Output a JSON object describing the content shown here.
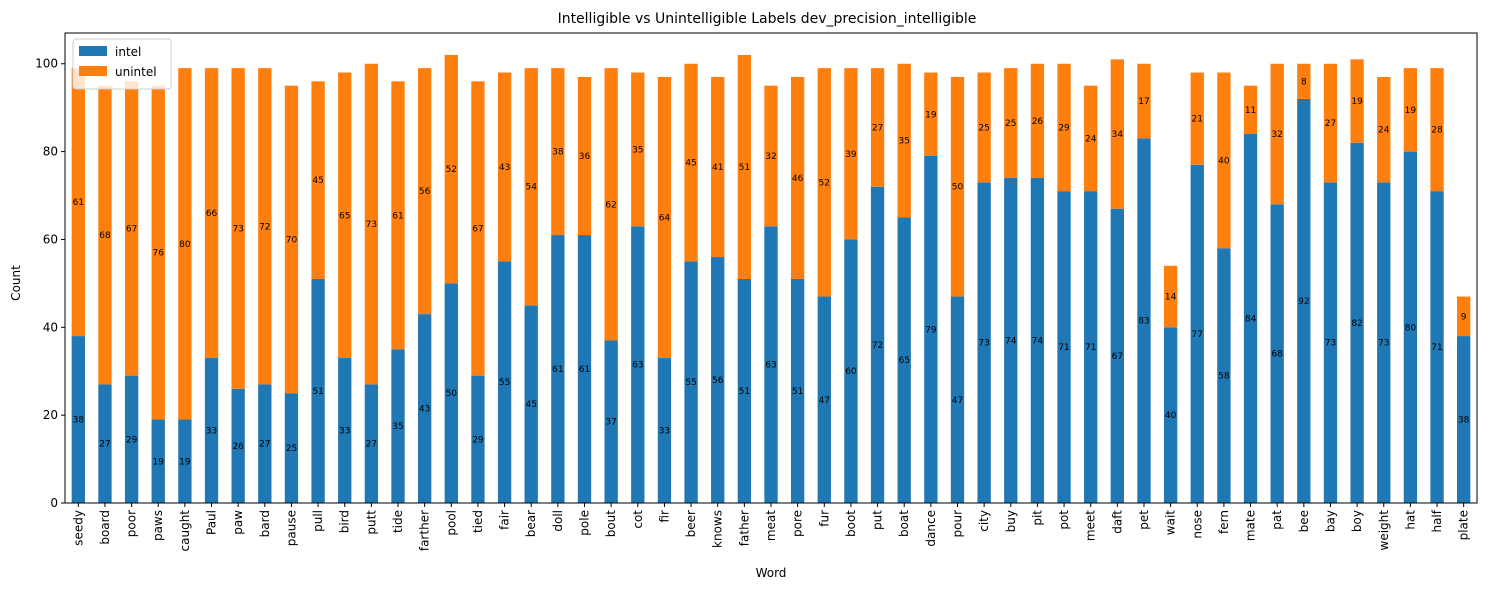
{
  "chart_data": {
    "type": "bar",
    "stacked": true,
    "title": "Intelligible vs Unintelligible Labels dev_precision_intelligible",
    "xlabel": "Word",
    "ylabel": "Count",
    "ylim": [
      0,
      107
    ],
    "yticks": [
      0,
      20,
      40,
      60,
      80,
      100
    ],
    "legend_position": "top-left",
    "grid": false,
    "categories": [
      "seedy",
      "board",
      "poor",
      "paws",
      "caught",
      "Paul",
      "paw",
      "bard",
      "pause",
      "pull",
      "bird",
      "putt",
      "tide",
      "farther",
      "pool",
      "tied",
      "fair",
      "bear",
      "doll",
      "pole",
      "bout",
      "cot",
      "fir",
      "beer",
      "knows",
      "father",
      "meat",
      "pore",
      "fur",
      "boot",
      "put",
      "boat",
      "dance",
      "pour",
      "city",
      "buy",
      "pit",
      "pot",
      "meet",
      "daft",
      "pet",
      "wait",
      "nose",
      "fern",
      "mate",
      "pat",
      "bee",
      "bay",
      "boy",
      "weight",
      "hat",
      "half",
      "plate"
    ],
    "series": [
      {
        "name": "intel",
        "color": "#1f77b4",
        "values": [
          38,
          27,
          29,
          19,
          19,
          33,
          26,
          27,
          25,
          51,
          33,
          27,
          35,
          43,
          50,
          29,
          55,
          45,
          61,
          61,
          37,
          63,
          33,
          55,
          56,
          51,
          63,
          51,
          47,
          60,
          72,
          65,
          79,
          47,
          73,
          74,
          74,
          71,
          71,
          67,
          83,
          40,
          77,
          58,
          84,
          68,
          92,
          73,
          82,
          73,
          80,
          71,
          38
        ]
      },
      {
        "name": "unintel",
        "color": "#ff7f0e",
        "values": [
          61,
          68,
          67,
          76,
          80,
          66,
          73,
          72,
          70,
          45,
          65,
          73,
          61,
          56,
          52,
          67,
          43,
          54,
          38,
          36,
          62,
          35,
          64,
          45,
          41,
          51,
          32,
          46,
          52,
          39,
          27,
          35,
          19,
          50,
          25,
          25,
          26,
          29,
          24,
          34,
          17,
          14,
          21,
          40,
          11,
          32,
          8,
          27,
          19,
          24,
          19,
          28,
          9
        ]
      }
    ]
  }
}
